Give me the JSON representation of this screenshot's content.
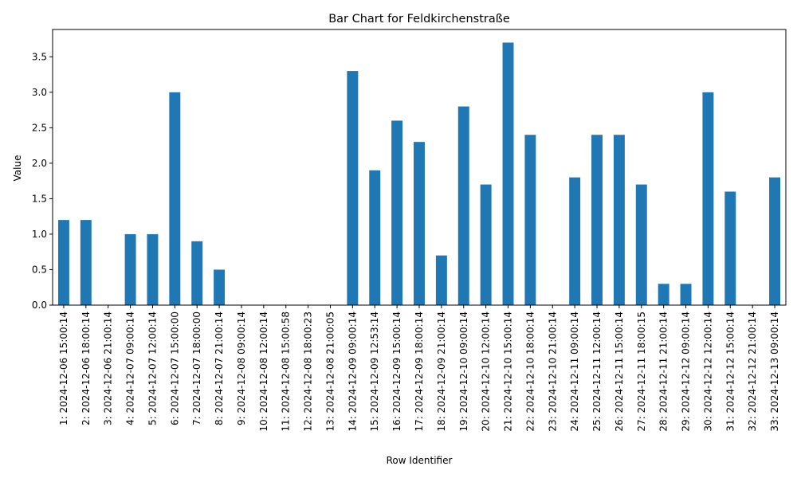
{
  "chart_data": {
    "type": "bar",
    "title": "Bar Chart for Feldkirchenstraße",
    "xlabel": "Row Identifier",
    "ylabel": "Value",
    "ylim": [
      0,
      3.885
    ],
    "yticks": [
      0.0,
      0.5,
      1.0,
      1.5,
      2.0,
      2.5,
      3.0,
      3.5
    ],
    "ytick_labels": [
      "0.0",
      "0.5",
      "1.0",
      "1.5",
      "2.0",
      "2.5",
      "3.0",
      "3.5"
    ],
    "grid": false,
    "bar_color": "#1f77b4",
    "categories": [
      "1: 2024-12-06 15:00:14",
      "2: 2024-12-06 18:00:14",
      "3: 2024-12-06 21:00:14",
      "4: 2024-12-07 09:00:14",
      "5: 2024-12-07 12:00:14",
      "6: 2024-12-07 15:00:00",
      "7: 2024-12-07 18:00:00",
      "8: 2024-12-07 21:00:14",
      "9: 2024-12-08 09:00:14",
      "10: 2024-12-08 12:00:14",
      "11: 2024-12-08 15:00:58",
      "12: 2024-12-08 18:00:23",
      "13: 2024-12-08 21:00:05",
      "14: 2024-12-09 09:00:14",
      "15: 2024-12-09 12:53:14",
      "16: 2024-12-09 15:00:14",
      "17: 2024-12-09 18:00:14",
      "18: 2024-12-09 21:00:14",
      "19: 2024-12-10 09:00:14",
      "20: 2024-12-10 12:00:14",
      "21: 2024-12-10 15:00:14",
      "22: 2024-12-10 18:00:14",
      "23: 2024-12-10 21:00:14",
      "24: 2024-12-11 09:00:14",
      "25: 2024-12-11 12:00:14",
      "26: 2024-12-11 15:00:14",
      "27: 2024-12-11 18:00:15",
      "28: 2024-12-11 21:00:14",
      "29: 2024-12-12 09:00:14",
      "30: 2024-12-12 12:00:14",
      "31: 2024-12-12 15:00:14",
      "32: 2024-12-12 21:00:14",
      "33: 2024-12-13 09:00:14"
    ],
    "values": [
      1.2,
      1.2,
      0,
      1.0,
      1.0,
      3.0,
      0.9,
      0.5,
      0,
      0,
      0,
      0,
      0,
      3.3,
      1.9,
      2.6,
      2.3,
      0.7,
      2.8,
      1.7,
      3.7,
      2.4,
      0,
      1.8,
      2.4,
      2.4,
      1.7,
      0.3,
      0.3,
      3.0,
      1.6,
      0,
      1.8
    ]
  }
}
